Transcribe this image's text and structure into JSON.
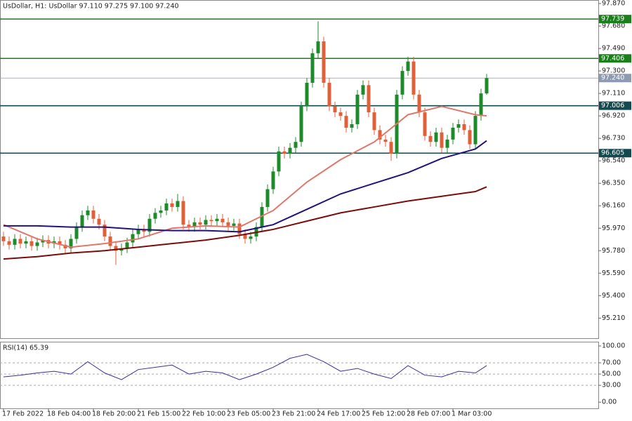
{
  "chart_data": {
    "type": "candlestick",
    "title": "UsDollar, H1:  UsDollar  97.110 97.275 97.100 97.240",
    "up_color": "#1f8a2b",
    "down_color": "#e0603a",
    "categories": [
      "17 Feb 2022",
      null,
      null,
      null,
      null,
      null,
      null,
      null,
      "18 Feb 04:00",
      null,
      null,
      null,
      null,
      null,
      null,
      null,
      "18 Feb 20:00",
      null,
      null,
      null,
      null,
      null,
      null,
      null,
      "21 Feb 15:00",
      null,
      null,
      null,
      null,
      null,
      null,
      null,
      "22 Feb 10:00",
      null,
      null,
      null,
      null,
      null,
      null,
      null,
      "23 Feb 05:00",
      null,
      null,
      null,
      null,
      null,
      null,
      null,
      "23 Feb 21:00",
      null,
      null,
      null,
      null,
      null,
      null,
      null,
      "24 Feb 17:00",
      null,
      null,
      null,
      null,
      null,
      null,
      null,
      "25 Feb 12:00",
      null,
      null,
      null,
      null,
      null,
      null,
      null,
      "28 Feb 07:00",
      null,
      null,
      null,
      null,
      null,
      null,
      null,
      "1 Mar 03:00",
      null,
      null,
      null,
      null,
      null,
      null
    ],
    "open": [
      95.9,
      95.86,
      95.83,
      95.88,
      95.84,
      95.86,
      95.82,
      95.85,
      95.87,
      95.84,
      95.86,
      95.83,
      95.8,
      95.88,
      95.98,
      96.08,
      96.12,
      96.05,
      96.0,
      95.9,
      95.82,
      95.78,
      95.8,
      95.85,
      95.92,
      95.96,
      95.94,
      96.05,
      96.1,
      96.12,
      96.18,
      96.15,
      96.2,
      96.0,
      95.98,
      96.02,
      96.0,
      96.04,
      96.03,
      96.05,
      96.02,
      95.99,
      96.01,
      95.92,
      95.88,
      95.9,
      95.98,
      96.15,
      96.3,
      96.45,
      96.62,
      96.6,
      96.65,
      96.7,
      97.0,
      97.2,
      97.45,
      97.55,
      97.2,
      97.0,
      96.95,
      96.92,
      96.82,
      96.85,
      97.1,
      97.18,
      96.95,
      96.8,
      96.72,
      96.7,
      96.6,
      97.1,
      97.3,
      97.38,
      97.1,
      96.95,
      96.75,
      96.7,
      96.78,
      96.65,
      96.72,
      96.82,
      96.85,
      96.8,
      96.68,
      96.92,
      97.11
    ],
    "high": [
      95.94,
      95.9,
      95.92,
      95.92,
      95.9,
      95.9,
      95.89,
      95.91,
      95.91,
      95.9,
      95.9,
      95.87,
      95.92,
      96.02,
      96.12,
      96.16,
      96.16,
      96.09,
      96.04,
      95.94,
      95.86,
      95.84,
      95.89,
      95.96,
      96.0,
      96.0,
      96.09,
      96.14,
      96.16,
      96.22,
      96.22,
      96.26,
      96.24,
      96.04,
      96.06,
      96.06,
      96.08,
      96.08,
      96.09,
      96.09,
      96.06,
      96.05,
      96.05,
      95.96,
      95.94,
      96.02,
      96.19,
      96.34,
      96.49,
      96.66,
      96.66,
      96.69,
      96.74,
      97.04,
      97.24,
      97.49,
      97.72,
      97.59,
      97.24,
      97.04,
      96.99,
      96.96,
      96.89,
      97.14,
      97.22,
      97.22,
      96.99,
      96.84,
      96.76,
      96.74,
      97.14,
      97.34,
      97.42,
      97.42,
      97.14,
      96.99,
      96.79,
      96.82,
      96.82,
      96.76,
      96.86,
      96.89,
      96.89,
      96.84,
      96.96,
      97.15,
      97.275
    ],
    "low": [
      95.82,
      95.79,
      95.79,
      95.8,
      95.8,
      95.78,
      95.78,
      95.81,
      95.8,
      95.8,
      95.79,
      95.76,
      95.76,
      95.84,
      95.94,
      96.04,
      96.01,
      95.96,
      95.86,
      95.78,
      95.66,
      95.74,
      95.76,
      95.81,
      95.88,
      95.9,
      95.9,
      96.01,
      96.06,
      96.08,
      96.11,
      96.11,
      95.96,
      95.94,
      95.94,
      95.96,
      95.96,
      95.99,
      95.99,
      95.98,
      95.95,
      95.95,
      95.88,
      95.84,
      95.84,
      95.86,
      95.94,
      96.11,
      96.26,
      96.41,
      96.56,
      96.56,
      96.61,
      96.66,
      96.96,
      97.16,
      97.41,
      97.16,
      96.96,
      96.91,
      96.88,
      96.78,
      96.78,
      96.81,
      97.06,
      96.91,
      96.76,
      96.68,
      96.66,
      96.54,
      96.56,
      97.06,
      97.26,
      97.06,
      96.91,
      96.71,
      96.66,
      96.66,
      96.61,
      96.61,
      96.68,
      96.78,
      96.76,
      96.64,
      96.64,
      96.88,
      97.1
    ],
    "close": [
      95.86,
      95.83,
      95.88,
      95.84,
      95.86,
      95.82,
      95.85,
      95.87,
      95.84,
      95.86,
      95.83,
      95.8,
      95.88,
      95.98,
      96.08,
      96.12,
      96.05,
      96.0,
      95.9,
      95.82,
      95.78,
      95.8,
      95.85,
      95.92,
      95.96,
      95.94,
      96.05,
      96.1,
      96.12,
      96.18,
      96.15,
      96.2,
      96.0,
      95.98,
      96.02,
      96.0,
      96.04,
      96.03,
      96.05,
      96.02,
      95.99,
      96.01,
      95.92,
      95.88,
      95.9,
      95.98,
      96.15,
      96.3,
      96.45,
      96.62,
      96.6,
      96.65,
      96.7,
      97.0,
      97.2,
      97.45,
      97.55,
      97.2,
      97.0,
      96.95,
      96.92,
      96.82,
      96.85,
      97.1,
      97.18,
      96.95,
      96.8,
      96.72,
      96.7,
      96.6,
      97.1,
      97.3,
      97.38,
      97.1,
      96.95,
      96.75,
      96.7,
      96.78,
      96.65,
      96.72,
      96.82,
      96.85,
      96.8,
      96.68,
      96.92,
      97.11,
      97.24
    ],
    "series": [
      {
        "color": "#e0776b",
        "x": [
          0,
          6,
          12,
          18,
          24,
          30,
          36,
          42,
          48,
          54,
          60,
          66,
          72,
          78,
          84,
          86
        ],
        "values": [
          96.0,
          95.88,
          95.81,
          95.84,
          95.88,
          95.97,
          95.99,
          95.98,
          96.12,
          96.36,
          96.55,
          96.7,
          96.93,
          97.0,
          96.93,
          96.92
        ]
      },
      {
        "color": "#22127a",
        "x": [
          0,
          6,
          12,
          18,
          24,
          30,
          36,
          42,
          48,
          54,
          60,
          66,
          72,
          78,
          84,
          86
        ],
        "values": [
          95.99,
          95.99,
          95.98,
          95.98,
          95.96,
          95.95,
          95.95,
          95.94,
          96.0,
          96.13,
          96.26,
          96.35,
          96.44,
          96.56,
          96.64,
          96.71
        ]
      },
      {
        "color": "#7b0c0c",
        "x": [
          0,
          6,
          12,
          18,
          24,
          30,
          36,
          42,
          48,
          54,
          60,
          66,
          72,
          78,
          84,
          86
        ],
        "values": [
          95.71,
          95.73,
          95.76,
          95.78,
          95.81,
          95.84,
          95.87,
          95.91,
          95.96,
          96.03,
          96.1,
          96.15,
          96.2,
          96.24,
          96.28,
          96.32
        ]
      }
    ],
    "ylim": [
      95.04,
      97.9
    ],
    "yticks": [
      {
        "value": 97.87,
        "label": "97.870"
      },
      {
        "value": 97.68,
        "label": "97.680"
      },
      {
        "value": 97.49,
        "label": "97.490"
      },
      {
        "value": 97.3,
        "label": "97.300"
      },
      {
        "value": 97.11,
        "label": "97.110"
      },
      {
        "value": 96.92,
        "label": "96.920"
      },
      {
        "value": 96.73,
        "label": "96.730"
      },
      {
        "value": 96.54,
        "label": "96.540"
      },
      {
        "value": 96.35,
        "label": "96.350"
      },
      {
        "value": 96.16,
        "label": "96.160"
      },
      {
        "value": 95.97,
        "label": "95.970"
      },
      {
        "value": 95.78,
        "label": "95.780"
      },
      {
        "value": 95.59,
        "label": "95.590"
      },
      {
        "value": 95.4,
        "label": "95.400"
      },
      {
        "value": 95.21,
        "label": "95.210"
      }
    ],
    "levels": [
      {
        "value": 97.739,
        "label": "97.739",
        "color": "#1b7f1b"
      },
      {
        "value": 97.406,
        "label": "97.406",
        "color": "#1b7f1b"
      },
      {
        "value": 97.006,
        "label": "97.006",
        "color": "#134a50"
      },
      {
        "value": 96.605,
        "label": "96.605",
        "color": "#134a50"
      }
    ],
    "current_price": {
      "value": 97.24,
      "label": "97.240",
      "color": "#8d9bb2"
    },
    "rsi": {
      "title": "RSI(14) 65.39",
      "color": "#3b2d9a",
      "x": [
        0,
        3,
        6,
        9,
        12,
        15,
        18,
        21,
        24,
        27,
        30,
        33,
        36,
        39,
        42,
        45,
        48,
        51,
        54,
        57,
        60,
        63,
        66,
        69,
        72,
        75,
        78,
        81,
        84,
        86
      ],
      "values": [
        45,
        48,
        52,
        55,
        50,
        72,
        52,
        40,
        58,
        62,
        66,
        50,
        55,
        52,
        40,
        50,
        62,
        78,
        85,
        72,
        55,
        60,
        50,
        42,
        65,
        48,
        45,
        55,
        52,
        65
      ],
      "ylim": [
        -11,
        107.5
      ],
      "yticks": [
        {
          "value": 100,
          "label": "100.00"
        },
        {
          "value": 70,
          "label": "70.00"
        },
        {
          "value": 50,
          "label": "50.00"
        },
        {
          "value": 30,
          "label": "30.00"
        },
        {
          "value": 0,
          "label": "0.00"
        }
      ]
    }
  }
}
